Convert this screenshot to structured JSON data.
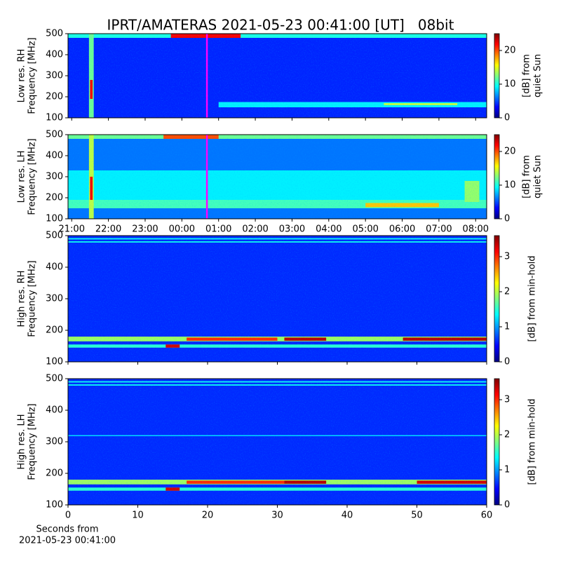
{
  "chart_data": [
    {
      "type": "heatmap",
      "title": "IPRT/AMATERAS 2021-05-23 00:41:00 [UT]   08bit",
      "ylabel": [
        "Low res. RH",
        "Frequency [MHz]"
      ],
      "ylim": [
        100,
        500
      ],
      "yticks": [
        100,
        200,
        300,
        400,
        500
      ],
      "xlim": [
        20.9,
        32.3
      ],
      "base_level": 4,
      "bands": [
        {
          "freq": [
            480,
            500
          ],
          "time": [
            20.9,
            32.3
          ],
          "value": 10
        },
        {
          "freq": [
            480,
            500
          ],
          "time": [
            23.7,
            25.6
          ],
          "value": 22
        },
        {
          "freq": [
            100,
            500
          ],
          "time": [
            21.47,
            21.6
          ],
          "value": 12
        },
        {
          "freq": [
            190,
            280
          ],
          "time": [
            21.5,
            21.57
          ],
          "value": 22
        },
        {
          "freq": [
            150,
            175
          ],
          "time": [
            25,
            32.3
          ],
          "value": 9
        },
        {
          "freq": [
            160,
            170
          ],
          "time": [
            29.5,
            31.5
          ],
          "value": 14
        }
      ],
      "marker": {
        "x": 24.683,
        "color": "#ff00ff"
      },
      "colorbar": {
        "label": [
          "[dB] from",
          "quiet Sun"
        ],
        "lim": [
          0,
          25
        ],
        "ticks": [
          0,
          10,
          20
        ]
      }
    },
    {
      "type": "heatmap",
      "ylabel": [
        "Low res. LH",
        "Frequency [MHz]"
      ],
      "ylim": [
        100,
        500
      ],
      "yticks": [
        100,
        200,
        300,
        400,
        500
      ],
      "xlim": [
        20.9,
        32.3
      ],
      "xticks": [
        {
          "value": 21,
          "label": "21:00"
        },
        {
          "value": 22,
          "label": "22:00"
        },
        {
          "value": 23,
          "label": "23:00"
        },
        {
          "value": 24,
          "label": "00:00"
        },
        {
          "value": 25,
          "label": "01:00"
        },
        {
          "value": 26,
          "label": "02:00"
        },
        {
          "value": 27,
          "label": "03:00"
        },
        {
          "value": 28,
          "label": "04:00"
        },
        {
          "value": 29,
          "label": "05:00"
        },
        {
          "value": 30,
          "label": "06:00"
        },
        {
          "value": 31,
          "label": "07:00"
        },
        {
          "value": 32,
          "label": "08:00"
        }
      ],
      "base_level": 6,
      "bands": [
        {
          "freq": [
            180,
            330
          ],
          "time": [
            20.9,
            32.3
          ],
          "value": 9
        },
        {
          "freq": [
            150,
            190
          ],
          "time": [
            20.9,
            32.3
          ],
          "value": 11
        },
        {
          "freq": [
            480,
            500
          ],
          "time": [
            20.9,
            32.3
          ],
          "value": 12
        },
        {
          "freq": [
            480,
            500
          ],
          "time": [
            23.5,
            25
          ],
          "value": 20
        },
        {
          "freq": [
            100,
            500
          ],
          "time": [
            21.47,
            21.6
          ],
          "value": 14
        },
        {
          "freq": [
            190,
            300
          ],
          "time": [
            21.5,
            21.57
          ],
          "value": 22
        },
        {
          "freq": [
            155,
            175
          ],
          "time": [
            29,
            31
          ],
          "value": 17
        },
        {
          "freq": [
            180,
            280
          ],
          "time": [
            31.7,
            32.1
          ],
          "value": 13
        }
      ],
      "marker": {
        "x": 24.683,
        "color": "#ff00ff"
      },
      "colorbar": {
        "label": [
          "[dB] from",
          "quiet Sun"
        ],
        "lim": [
          0,
          25
        ],
        "ticks": [
          0,
          10,
          20
        ]
      }
    },
    {
      "type": "heatmap",
      "ylabel": [
        "High res. RH",
        "Frequency [MHz]"
      ],
      "ylim": [
        100,
        500
      ],
      "yticks": [
        100,
        200,
        300,
        400,
        500
      ],
      "xlim": [
        0,
        60
      ],
      "base_level": 0.6,
      "bands": [
        {
          "freq": [
            478,
            482
          ],
          "time": [
            0,
            60
          ],
          "value": 1.4
        },
        {
          "freq": [
            488,
            492
          ],
          "time": [
            0,
            60
          ],
          "value": 1.4
        },
        {
          "freq": [
            165,
            180
          ],
          "time": [
            0,
            60
          ],
          "value": 1.9
        },
        {
          "freq": [
            145,
            155
          ],
          "time": [
            0,
            60
          ],
          "value": 1.5
        },
        {
          "freq": [
            167,
            177
          ],
          "time": [
            17,
            30
          ],
          "value": 3.0
        },
        {
          "freq": [
            167,
            177
          ],
          "time": [
            31,
            37
          ],
          "value": 3.4
        },
        {
          "freq": [
            167,
            177
          ],
          "time": [
            48,
            60
          ],
          "value": 3.4
        },
        {
          "freq": [
            145,
            155
          ],
          "time": [
            14,
            16
          ],
          "value": 3.3
        }
      ],
      "colorbar": {
        "label": [
          "[dB] from min-hold"
        ],
        "lim": [
          0,
          3.6
        ],
        "ticks": [
          0,
          1,
          2,
          3
        ]
      }
    },
    {
      "type": "heatmap",
      "ylabel": [
        "High res. LH",
        "Frequency [MHz]"
      ],
      "ylim": [
        100,
        500
      ],
      "yticks": [
        100,
        200,
        300,
        400,
        500
      ],
      "xlim": [
        0,
        60
      ],
      "xticks": [
        0,
        10,
        20,
        30,
        40,
        50,
        60
      ],
      "xlabel": [
        "Seconds from",
        "2021-05-23 00:41:00"
      ],
      "base_level": 0.6,
      "bands": [
        {
          "freq": [
            478,
            482
          ],
          "time": [
            0,
            60
          ],
          "value": 1.4
        },
        {
          "freq": [
            488,
            492
          ],
          "time": [
            0,
            60
          ],
          "value": 1.4
        },
        {
          "freq": [
            318,
            321
          ],
          "time": [
            0,
            60
          ],
          "value": 1.3
        },
        {
          "freq": [
            165,
            180
          ],
          "time": [
            0,
            60
          ],
          "value": 1.9
        },
        {
          "freq": [
            145,
            155
          ],
          "time": [
            0,
            60
          ],
          "value": 1.5
        },
        {
          "freq": [
            167,
            177
          ],
          "time": [
            17,
            31
          ],
          "value": 3.0
        },
        {
          "freq": [
            167,
            177
          ],
          "time": [
            31,
            37
          ],
          "value": 3.4
        },
        {
          "freq": [
            167,
            177
          ],
          "time": [
            50,
            60
          ],
          "value": 3.3
        },
        {
          "freq": [
            145,
            155
          ],
          "time": [
            14,
            16
          ],
          "value": 3.3
        }
      ],
      "colorbar": {
        "label": [
          "[dB] from min-hold"
        ],
        "lim": [
          0,
          3.6
        ],
        "ticks": [
          0,
          1,
          2,
          3
        ]
      }
    }
  ]
}
